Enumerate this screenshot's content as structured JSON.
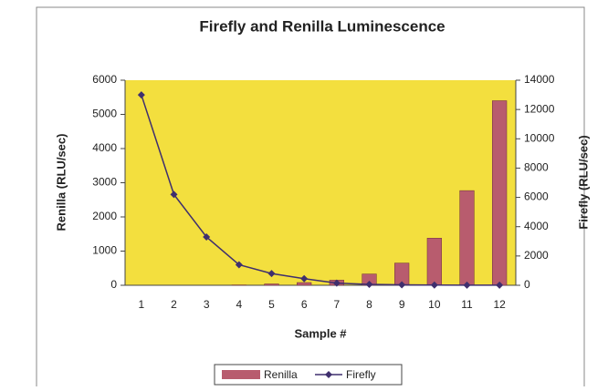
{
  "chart_data": {
    "type": "bar",
    "title": "Firefly and Renilla Luminescence",
    "x_label": "Sample #",
    "y_label": "Renilla (RLU/sec)",
    "y2_label": "Firefly (RLU/sec)",
    "categories": [
      "1",
      "2",
      "3",
      "4",
      "5",
      "6",
      "7",
      "8",
      "9",
      "10",
      "11",
      "12"
    ],
    "series": [
      {
        "name": "Renilla",
        "type": "bar",
        "color": "#b85c6e",
        "values": [
          0,
          0,
          0,
          10,
          40,
          80,
          150,
          330,
          650,
          1380,
          2770,
          5400
        ]
      },
      {
        "name": "Firefly",
        "type": "line",
        "axis": "y2",
        "color": "#3f2f6e",
        "values": [
          13000,
          6200,
          3300,
          1400,
          800,
          450,
          150,
          60,
          30,
          15,
          10,
          5
        ]
      }
    ],
    "ylim": [
      0,
      6000
    ],
    "yticks": [
      0,
      1000,
      2000,
      3000,
      4000,
      5000,
      6000
    ],
    "y2lim": [
      0,
      14000
    ],
    "y2ticks": [
      0,
      2000,
      4000,
      6000,
      8000,
      10000,
      12000,
      14000
    ],
    "plot_background": "#f3df3e",
    "legend": "bottom"
  }
}
